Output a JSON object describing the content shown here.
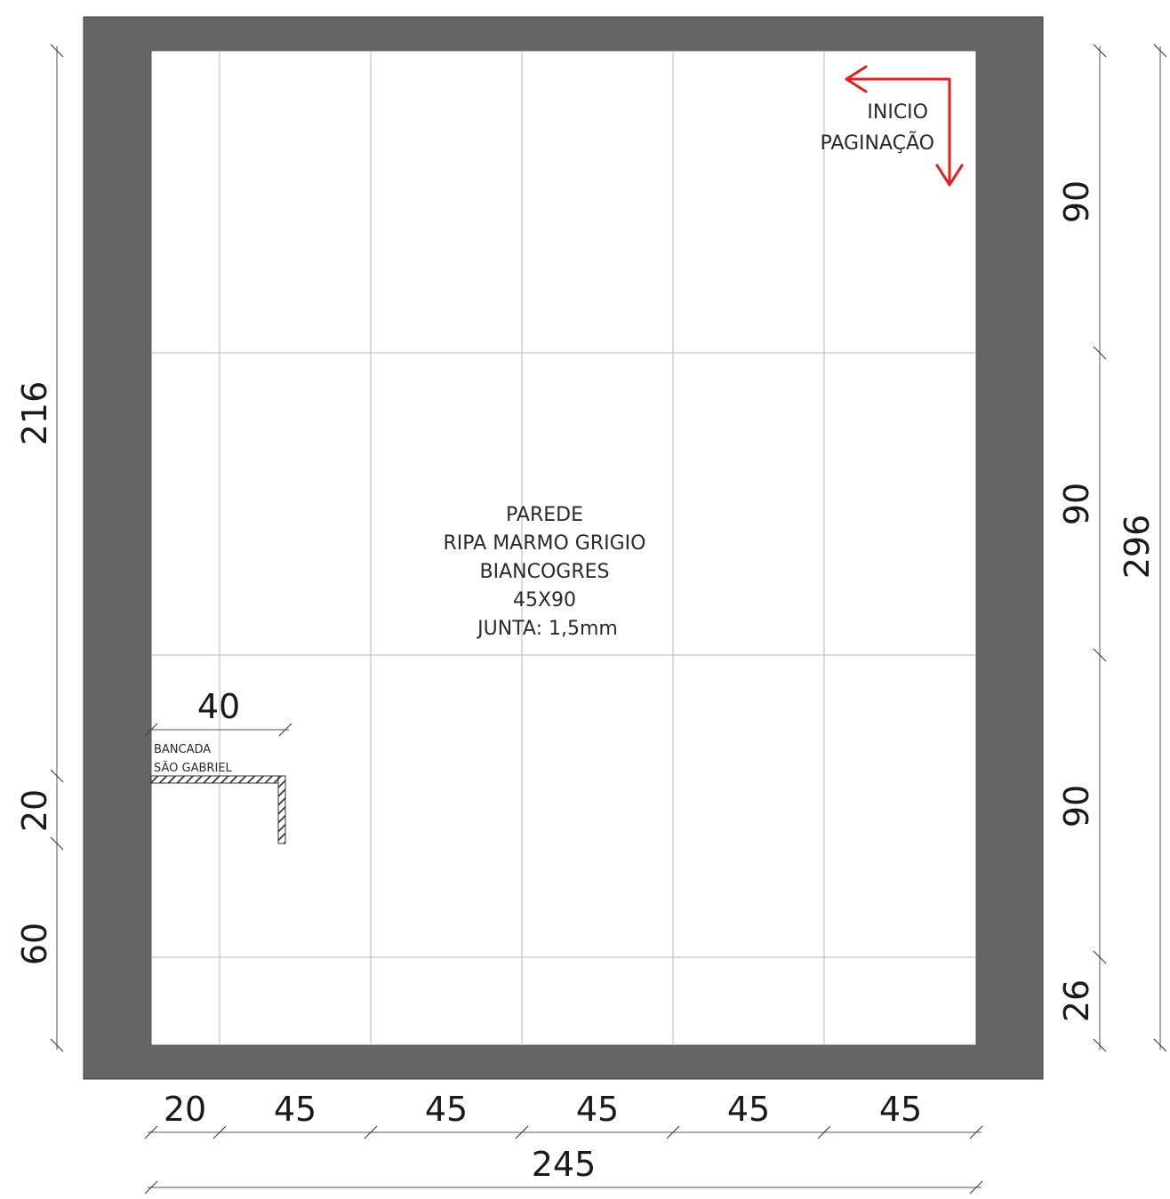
{
  "drawing": {
    "note": {
      "lines": [
        "PAREDE",
        "RIPA MARMO GRIGIO",
        "BIANCOGRES",
        "45X90",
        "JUNTA: 1,5mm"
      ]
    },
    "start_label": [
      "INICIO",
      "PAGINAÇÃO"
    ],
    "counter": {
      "label": [
        "BANCADA",
        "SÃO GABRIEL"
      ],
      "width": "40"
    },
    "dimensions": {
      "horizontal_segments": [
        "20",
        "45",
        "45",
        "45",
        "45",
        "45"
      ],
      "horizontal_total": "245",
      "right_segments": [
        "90",
        "90",
        "90",
        "26"
      ],
      "right_total": "296",
      "left_total": "216",
      "left_counter": "20",
      "left_bottom": "60"
    },
    "colors": {
      "wall": "#646566",
      "arrow": "#e02020",
      "grid": "#b8b8b8"
    }
  }
}
